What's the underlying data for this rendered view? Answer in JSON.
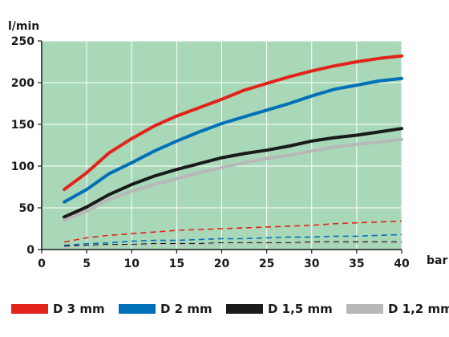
{
  "chart_data": {
    "type": "line",
    "ylabel": "l/min",
    "xlabel": "bar",
    "xlim": [
      0,
      40
    ],
    "ylim": [
      0,
      250
    ],
    "xticks": [
      0,
      5,
      10,
      15,
      20,
      25,
      30,
      35,
      40
    ],
    "yticks": [
      0,
      50,
      100,
      150,
      200,
      250
    ],
    "grid": true,
    "background_color": "#a8d8b8",
    "legend_position": "bottom",
    "x": [
      2.5,
      5,
      7.5,
      10,
      12.5,
      15,
      17.5,
      20,
      22.5,
      25,
      27.5,
      30,
      32.5,
      35,
      37.5,
      40
    ],
    "series": [
      {
        "name": "D 3 mm",
        "color": "#e2231a",
        "dashed": false,
        "values": [
          72,
          92,
          116,
          133,
          148,
          160,
          170,
          180,
          191,
          199,
          207,
          214,
          220,
          225,
          229,
          232
        ]
      },
      {
        "name": "D 2 mm",
        "color": "#0070b8",
        "dashed": false,
        "values": [
          57,
          72,
          91,
          104,
          118,
          130,
          141,
          151,
          159,
          167,
          175,
          184,
          192,
          197,
          202,
          205
        ]
      },
      {
        "name": "D 1,5 mm",
        "color": "#1a1a1a",
        "dashed": false,
        "values": [
          39,
          51,
          66,
          78,
          88,
          96,
          103,
          110,
          115,
          119,
          124,
          130,
          134,
          137,
          141,
          145
        ]
      },
      {
        "name": "D 1,2 mm",
        "color": "#b8b8b8",
        "dashed": false,
        "values": [
          35,
          46,
          60,
          70,
          78,
          85,
          92,
          98,
          104,
          109,
          113,
          118,
          123,
          126,
          129,
          132
        ]
      },
      {
        "name": "D 3 mm",
        "color": "#e2231a",
        "dashed": true,
        "values": [
          9,
          14,
          17,
          19,
          21,
          23,
          24,
          25,
          26,
          27,
          28,
          29,
          31,
          32,
          33,
          34
        ]
      },
      {
        "name": "D 2 mm",
        "color": "#0070b8",
        "dashed": true,
        "values": [
          5,
          7,
          8,
          10,
          11,
          11,
          12,
          13,
          13,
          14,
          15,
          15,
          16,
          16,
          17,
          18
        ]
      },
      {
        "name": "D 1,5 mm",
        "color": "#1a1a1a",
        "dashed": true,
        "values": [
          4,
          5,
          6,
          6,
          7,
          7,
          7,
          8,
          8,
          8,
          8,
          9,
          9,
          9,
          9,
          9
        ]
      },
      {
        "name": "D 1,2 mm",
        "color": "#b8b8b8",
        "dashed": true,
        "values": [
          3,
          4,
          5,
          5,
          6,
          6,
          6,
          7,
          7,
          7,
          7,
          8,
          8,
          8,
          8,
          8
        ]
      }
    ]
  },
  "legend": [
    {
      "label": "D 3 mm",
      "color": "#e2231a"
    },
    {
      "label": "D 2 mm",
      "color": "#0070b8"
    },
    {
      "label": "D 1,5 mm",
      "color": "#1a1a1a"
    },
    {
      "label": "D 1,2 mm",
      "color": "#b8b8b8"
    }
  ]
}
